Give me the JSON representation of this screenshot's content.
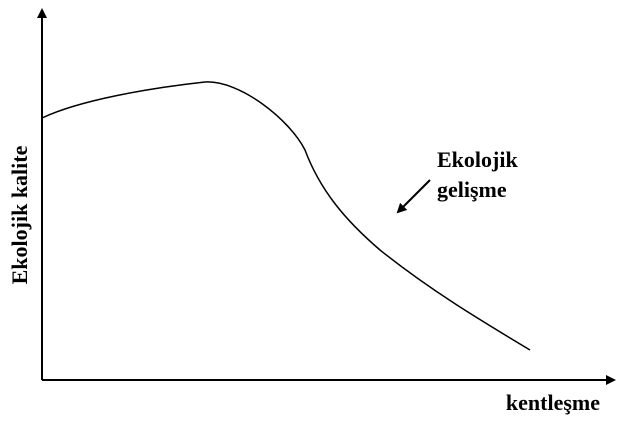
{
  "axes": {
    "y_label": "Ekolojik kalite",
    "x_label": "kentleşme"
  },
  "annotation": {
    "lines": [
      "Ekolojik",
      "gelişme"
    ]
  }
}
